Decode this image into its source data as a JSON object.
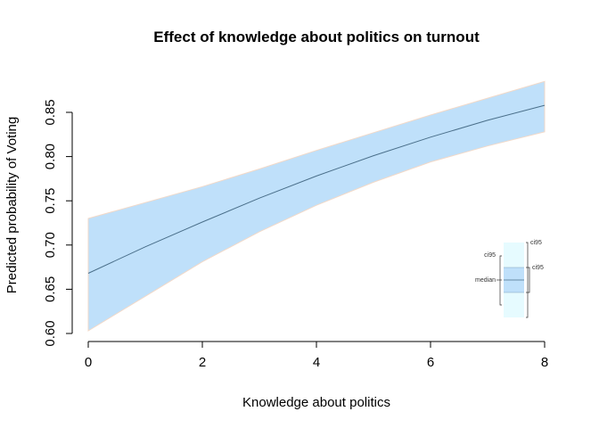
{
  "chart_data": {
    "type": "line",
    "title": "Effect of knowledge about politics on turnout",
    "xlabel": "Knowledge about politics",
    "ylabel": "Predicted probability of Voting",
    "xlim": [
      0,
      8
    ],
    "ylim": [
      0.6,
      0.85
    ],
    "xticks": [
      "0",
      "2",
      "4",
      "6",
      "8"
    ],
    "yticks": [
      "0.60",
      "0.65",
      "0.70",
      "0.75",
      "0.80",
      "0.85"
    ],
    "grid": false,
    "series": [
      {
        "x": [
          0,
          1,
          2,
          3,
          4,
          5,
          6,
          7,
          8
        ],
        "median": [
          0.668,
          0.698,
          0.726,
          0.753,
          0.778,
          0.801,
          0.822,
          0.841,
          0.858
        ],
        "ci95_lower": [
          0.603,
          0.642,
          0.681,
          0.715,
          0.745,
          0.771,
          0.794,
          0.812,
          0.828
        ],
        "ci95_upper": [
          0.73,
          0.748,
          0.766,
          0.786,
          0.807,
          0.827,
          0.847,
          0.866,
          0.885
        ]
      }
    ],
    "legend": {
      "position": "bottom-right",
      "labels": [
        "ci95",
        "median",
        "ci95",
        "ci95"
      ]
    },
    "colors": {
      "band": "#bfe0fa",
      "band_edge": "#f2d9c8",
      "line": "#4a6f8a",
      "legend_outer": "#e6fbff",
      "legend_inner": "#bfe0fa"
    }
  }
}
